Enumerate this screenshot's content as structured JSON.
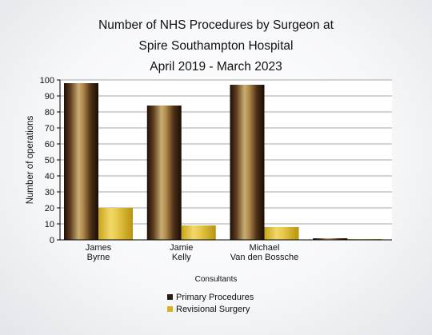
{
  "chart_data": {
    "type": "bar",
    "title": [
      "Number of NHS Procedures by Surgeon at",
      "Spire Southampton Hospital",
      "April 2019 - March 2023"
    ],
    "xlabel": "Consultants",
    "ylabel": "Number of operations",
    "ylim": [
      0,
      100
    ],
    "yticks": [
      0,
      10,
      20,
      30,
      40,
      50,
      60,
      70,
      80,
      90,
      100
    ],
    "grid": true,
    "legend_position": "bottom-center",
    "categories": [
      [
        "James",
        "Byrne"
      ],
      [
        "Jamie",
        "Kelly"
      ],
      [
        "Michael",
        "Van den Bossche"
      ],
      [
        "",
        ""
      ]
    ],
    "series": [
      {
        "name": "Primary Procedures",
        "values": [
          98,
          84,
          97,
          1
        ],
        "color": "#3a2a1a"
      },
      {
        "name": "Revisional Surgery",
        "values": [
          20,
          9,
          8,
          0.5
        ],
        "color": "#d4b41e"
      }
    ]
  }
}
